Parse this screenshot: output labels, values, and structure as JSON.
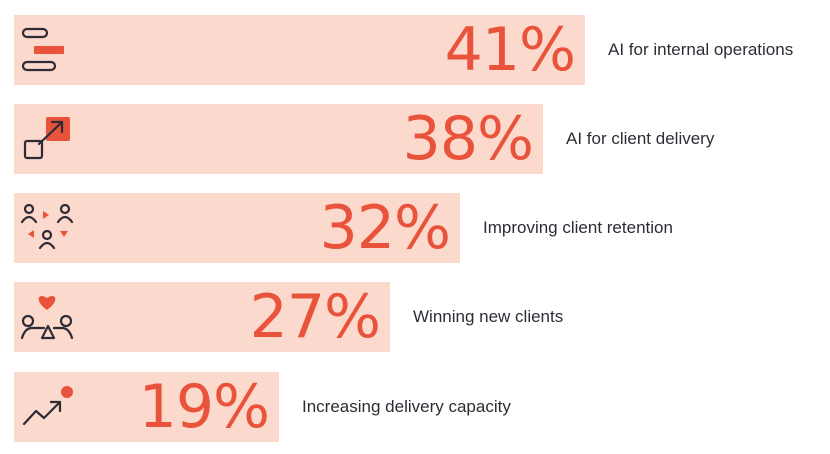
{
  "chart_data": {
    "type": "bar",
    "orientation": "horizontal",
    "categories": [
      "AI for internal operations",
      "AI for client delivery",
      "Improving client retention",
      "Winning new clients",
      "Increasing delivery capacity"
    ],
    "values": [
      41,
      38,
      32,
      27,
      19
    ],
    "value_labels": [
      "41%",
      "38%",
      "32%",
      "27%",
      "19%"
    ],
    "icons": [
      "gantt-bars-icon",
      "expand-arrow-icon",
      "people-cycle-icon",
      "handshake-heart-icon",
      "trend-up-icon"
    ],
    "unit": "%",
    "legend": "none",
    "grid": false,
    "colors": {
      "bar": "#fbd9cc",
      "value": "#e9533b",
      "icon_line": "#2f2b35",
      "icon_accent": "#e9533b",
      "label": "#2f2b35"
    }
  }
}
